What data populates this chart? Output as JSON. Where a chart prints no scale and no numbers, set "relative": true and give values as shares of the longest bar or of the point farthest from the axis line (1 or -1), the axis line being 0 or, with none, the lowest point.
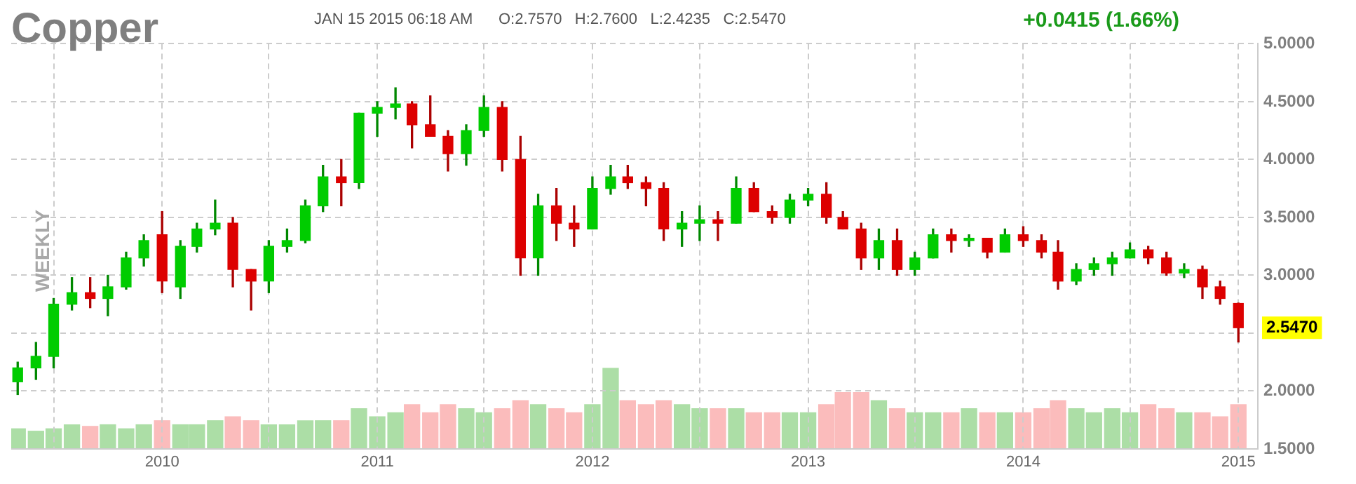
{
  "chart_data": [
    {
      "type": "candlestick",
      "title": "Copper",
      "subtitle": "JAN 15 2015 06:18 AM      O:2.7570   H:2.7600   L:2.4235   C:2.5470",
      "ylabel": "WEEKLY",
      "x": [
        "2009-05",
        "2009-06",
        "2009-07",
        "2009-08",
        "2009-09",
        "2009-10",
        "2009-11",
        "2009-12",
        "2010-01",
        "2010-02",
        "2010-03",
        "2010-04",
        "2010-05",
        "2010-06",
        "2010-07",
        "2010-08",
        "2010-09",
        "2010-10",
        "2010-11",
        "2010-12",
        "2011-01",
        "2011-02",
        "2011-03",
        "2011-04",
        "2011-05",
        "2011-06",
        "2011-07",
        "2011-08",
        "2011-09",
        "2011-10",
        "2011-11",
        "2011-12",
        "2012-01",
        "2012-02",
        "2012-03",
        "2012-04",
        "2012-05",
        "2012-06",
        "2012-07",
        "2012-08",
        "2012-09",
        "2012-10",
        "2012-11",
        "2012-12",
        "2013-01",
        "2013-02",
        "2013-03",
        "2013-04",
        "2013-05",
        "2013-06",
        "2013-07",
        "2013-08",
        "2013-09",
        "2013-10",
        "2013-11",
        "2013-12",
        "2014-01",
        "2014-02",
        "2014-03",
        "2014-04",
        "2014-05",
        "2014-06",
        "2014-07",
        "2014-08",
        "2014-09",
        "2014-10",
        "2014-11",
        "2014-12",
        "2015-01"
      ],
      "ohlc": [
        [
          2.08,
          2.25,
          1.97,
          2.2
        ],
        [
          2.2,
          2.42,
          2.1,
          2.3
        ],
        [
          2.3,
          2.8,
          2.2,
          2.75
        ],
        [
          2.75,
          2.98,
          2.7,
          2.85
        ],
        [
          2.85,
          2.98,
          2.72,
          2.8
        ],
        [
          2.8,
          3.0,
          2.65,
          2.9
        ],
        [
          2.9,
          3.2,
          2.88,
          3.15
        ],
        [
          3.15,
          3.35,
          3.08,
          3.3
        ],
        [
          3.35,
          3.55,
          2.85,
          2.95
        ],
        [
          2.9,
          3.3,
          2.8,
          3.25
        ],
        [
          3.25,
          3.45,
          3.2,
          3.4
        ],
        [
          3.4,
          3.65,
          3.35,
          3.45
        ],
        [
          3.45,
          3.5,
          2.9,
          3.05
        ],
        [
          3.05,
          3.05,
          2.7,
          2.95
        ],
        [
          2.95,
          3.3,
          2.85,
          3.25
        ],
        [
          3.25,
          3.4,
          3.2,
          3.3
        ],
        [
          3.3,
          3.65,
          3.28,
          3.6
        ],
        [
          3.6,
          3.95,
          3.55,
          3.85
        ],
        [
          3.85,
          4.0,
          3.6,
          3.8
        ],
        [
          3.8,
          4.4,
          3.75,
          4.4
        ],
        [
          4.4,
          4.5,
          4.2,
          4.45
        ],
        [
          4.45,
          4.62,
          4.35,
          4.48
        ],
        [
          4.48,
          4.5,
          4.1,
          4.3
        ],
        [
          4.3,
          4.55,
          4.2,
          4.2
        ],
        [
          4.2,
          4.25,
          3.9,
          4.05
        ],
        [
          4.05,
          4.3,
          3.95,
          4.25
        ],
        [
          4.25,
          4.55,
          4.2,
          4.45
        ],
        [
          4.45,
          4.5,
          3.9,
          4.0
        ],
        [
          4.0,
          4.2,
          3.0,
          3.15
        ],
        [
          3.15,
          3.7,
          3.0,
          3.6
        ],
        [
          3.6,
          3.75,
          3.3,
          3.45
        ],
        [
          3.45,
          3.6,
          3.25,
          3.4
        ],
        [
          3.4,
          3.85,
          3.4,
          3.75
        ],
        [
          3.75,
          3.95,
          3.7,
          3.85
        ],
        [
          3.85,
          3.95,
          3.75,
          3.8
        ],
        [
          3.8,
          3.85,
          3.6,
          3.75
        ],
        [
          3.75,
          3.8,
          3.3,
          3.4
        ],
        [
          3.4,
          3.55,
          3.25,
          3.45
        ],
        [
          3.45,
          3.6,
          3.3,
          3.48
        ],
        [
          3.48,
          3.55,
          3.3,
          3.45
        ],
        [
          3.45,
          3.85,
          3.45,
          3.75
        ],
        [
          3.75,
          3.8,
          3.55,
          3.55
        ],
        [
          3.55,
          3.6,
          3.45,
          3.5
        ],
        [
          3.5,
          3.7,
          3.45,
          3.65
        ],
        [
          3.65,
          3.75,
          3.6,
          3.7
        ],
        [
          3.7,
          3.8,
          3.45,
          3.5
        ],
        [
          3.5,
          3.55,
          3.4,
          3.4
        ],
        [
          3.4,
          3.45,
          3.05,
          3.15
        ],
        [
          3.15,
          3.4,
          3.05,
          3.3
        ],
        [
          3.3,
          3.4,
          3.0,
          3.05
        ],
        [
          3.05,
          3.2,
          3.0,
          3.15
        ],
        [
          3.15,
          3.4,
          3.15,
          3.35
        ],
        [
          3.35,
          3.4,
          3.2,
          3.3
        ],
        [
          3.3,
          3.35,
          3.25,
          3.32
        ],
        [
          3.32,
          3.32,
          3.15,
          3.2
        ],
        [
          3.2,
          3.4,
          3.2,
          3.35
        ],
        [
          3.35,
          3.42,
          3.25,
          3.3
        ],
        [
          3.3,
          3.35,
          3.15,
          3.2
        ],
        [
          3.2,
          3.3,
          2.88,
          2.95
        ],
        [
          2.95,
          3.1,
          2.92,
          3.05
        ],
        [
          3.05,
          3.15,
          3.0,
          3.1
        ],
        [
          3.1,
          3.2,
          3.0,
          3.15
        ],
        [
          3.15,
          3.28,
          3.15,
          3.22
        ],
        [
          3.22,
          3.25,
          3.1,
          3.15
        ],
        [
          3.15,
          3.2,
          3.0,
          3.02
        ],
        [
          3.02,
          3.1,
          2.98,
          3.05
        ],
        [
          3.05,
          3.08,
          2.8,
          2.9
        ],
        [
          2.9,
          2.95,
          2.75,
          2.8
        ],
        [
          2.757,
          2.76,
          2.4235,
          2.547
        ]
      ],
      "xlim": [
        "2009-04-20",
        "2015-02-03"
      ],
      "xticks": [
        {
          "value": "2009-07-01",
          "label": null
        },
        {
          "value": "2010-01-01",
          "label": "2010"
        },
        {
          "value": "2010-07-01",
          "label": null
        },
        {
          "value": "2011-01-01",
          "label": "2011"
        },
        {
          "value": "2011-07-01",
          "label": null
        },
        {
          "value": "2012-01-01",
          "label": "2012"
        },
        {
          "value": "2012-07-01",
          "label": null
        },
        {
          "value": "2013-01-01",
          "label": "2013"
        },
        {
          "value": "2013-07-01",
          "label": null
        },
        {
          "value": "2014-01-01",
          "label": "2014"
        },
        {
          "value": "2014-07-01",
          "label": null
        },
        {
          "value": "2015-01-01",
          "label": "2015"
        }
      ],
      "ylim": [
        1.5,
        5
      ],
      "yticks": [
        {
          "value": 1.5,
          "label": "1.5000"
        },
        {
          "value": 2,
          "label": "2.0000"
        },
        {
          "value": 2.5,
          "label": null
        },
        {
          "value": 3,
          "label": "3.0000"
        },
        {
          "value": 3.5,
          "label": "3.5000"
        },
        {
          "value": 4,
          "label": "4.0000"
        },
        {
          "value": 4.5,
          "label": "4.5000"
        },
        {
          "value": 5,
          "label": "5.0000"
        }
      ],
      "grid": true,
      "legend": false,
      "annotations": [
        "+0.0415 (1.66%)",
        "2.5470"
      ]
    },
    {
      "type": "bar",
      "relative": true,
      "x": [
        "2009-05",
        "2009-06",
        "2009-07",
        "2009-08",
        "2009-09",
        "2009-10",
        "2009-11",
        "2009-12",
        "2010-01",
        "2010-02",
        "2010-03",
        "2010-04",
        "2010-05",
        "2010-06",
        "2010-07",
        "2010-08",
        "2010-09",
        "2010-10",
        "2010-11",
        "2010-12",
        "2011-01",
        "2011-02",
        "2011-03",
        "2011-04",
        "2011-05",
        "2011-06",
        "2011-07",
        "2011-08",
        "2011-09",
        "2011-10",
        "2011-11",
        "2011-12",
        "2012-01",
        "2012-02",
        "2012-03",
        "2012-04",
        "2012-05",
        "2012-06",
        "2012-07",
        "2012-08",
        "2012-09",
        "2012-10",
        "2012-11",
        "2012-12",
        "2013-01",
        "2013-02",
        "2013-03",
        "2013-04",
        "2013-05",
        "2013-06",
        "2013-07",
        "2013-08",
        "2013-09",
        "2013-10",
        "2013-11",
        "2013-12",
        "2014-01",
        "2014-02",
        "2014-03",
        "2014-04",
        "2014-05",
        "2014-06",
        "2014-07",
        "2014-08",
        "2014-09",
        "2014-10",
        "2014-11",
        "2014-12",
        "2015-01"
      ],
      "xlim": [
        "2009-04-20",
        "2015-02-03"
      ],
      "values": [
        0.25,
        0.22,
        0.25,
        0.3,
        0.28,
        0.3,
        0.25,
        0.3,
        0.35,
        0.3,
        0.3,
        0.35,
        0.4,
        0.35,
        0.3,
        0.3,
        0.35,
        0.35,
        0.35,
        0.5,
        0.4,
        0.45,
        0.55,
        0.45,
        0.55,
        0.5,
        0.45,
        0.5,
        0.6,
        0.55,
        0.5,
        0.45,
        0.55,
        1,
        0.6,
        0.55,
        0.6,
        0.55,
        0.5,
        0.5,
        0.5,
        0.45,
        0.45,
        0.45,
        0.45,
        0.55,
        0.7,
        0.7,
        0.6,
        0.5,
        0.45,
        0.45,
        0.45,
        0.5,
        0.45,
        0.45,
        0.45,
        0.5,
        0.6,
        0.5,
        0.45,
        0.5,
        0.45,
        0.55,
        0.5,
        0.45,
        0.45,
        0.4,
        0.55
      ],
      "colors": [
        "#acdea6",
        "#acdea6",
        "#acdea6",
        "#acdea6",
        "#fbbcbc",
        "#acdea6",
        "#acdea6",
        "#acdea6",
        "#fbbcbc",
        "#acdea6",
        "#acdea6",
        "#acdea6",
        "#fbbcbc",
        "#fbbcbc",
        "#acdea6",
        "#acdea6",
        "#acdea6",
        "#acdea6",
        "#fbbcbc",
        "#acdea6",
        "#acdea6",
        "#acdea6",
        "#fbbcbc",
        "#fbbcbc",
        "#fbbcbc",
        "#acdea6",
        "#acdea6",
        "#fbbcbc",
        "#fbbcbc",
        "#acdea6",
        "#fbbcbc",
        "#fbbcbc",
        "#acdea6",
        "#acdea6",
        "#fbbcbc",
        "#fbbcbc",
        "#fbbcbc",
        "#acdea6",
        "#acdea6",
        "#fbbcbc",
        "#acdea6",
        "#fbbcbc",
        "#fbbcbc",
        "#acdea6",
        "#acdea6",
        "#fbbcbc",
        "#fbbcbc",
        "#fbbcbc",
        "#acdea6",
        "#fbbcbc",
        "#acdea6",
        "#acdea6",
        "#fbbcbc",
        "#acdea6",
        "#fbbcbc",
        "#acdea6",
        "#fbbcbc",
        "#fbbcbc",
        "#fbbcbc",
        "#acdea6",
        "#acdea6",
        "#acdea6",
        "#acdea6",
        "#fbbcbc",
        "#fbbcbc",
        "#acdea6",
        "#fbbcbc",
        "#fbbcbc",
        "#fbbcbc"
      ]
    }
  ]
}
